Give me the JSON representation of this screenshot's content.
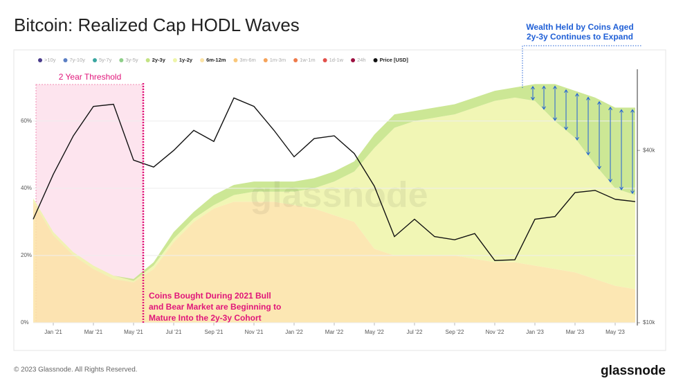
{
  "title": "Bitcoin: Realized Cap HODL Waves",
  "footer": "© 2023 Glassnode. All Rights Reserved.",
  "logo": "glassnode",
  "chart_data": {
    "type": "stacked_area",
    "watermark": "glassnode",
    "x": [
      "2020-12",
      "2021-01",
      "2021-02",
      "2021-03",
      "2021-04",
      "2021-05",
      "2021-06",
      "2021-07",
      "2021-08",
      "2021-09",
      "2021-10",
      "2021-11",
      "2021-12",
      "2022-01",
      "2022-02",
      "2022-03",
      "2022-04",
      "2022-05",
      "2022-06",
      "2022-07",
      "2022-08",
      "2022-09",
      "2022-10",
      "2022-11",
      "2022-12",
      "2023-01",
      "2023-02",
      "2023-03",
      "2023-04",
      "2023-05",
      "2023-06"
    ],
    "xlim": [
      "2020-12",
      "2023-06"
    ],
    "xticks": [
      {
        "value": "2021-01",
        "label": "Jan '21"
      },
      {
        "value": "2021-03",
        "label": "Mar '21"
      },
      {
        "value": "2021-05",
        "label": "May '21"
      },
      {
        "value": "2021-07",
        "label": "Jul '21"
      },
      {
        "value": "2021-09",
        "label": "Sep '21"
      },
      {
        "value": "2021-11",
        "label": "Nov '21"
      },
      {
        "value": "2022-01",
        "label": "Jan '22"
      },
      {
        "value": "2022-03",
        "label": "Mar '22"
      },
      {
        "value": "2022-05",
        "label": "May '22"
      },
      {
        "value": "2022-07",
        "label": "Jul '22"
      },
      {
        "value": "2022-09",
        "label": "Sep '22"
      },
      {
        "value": "2022-11",
        "label": "Nov '22"
      },
      {
        "value": "2023-01",
        "label": "Jan '23"
      },
      {
        "value": "2023-03",
        "label": "Mar '23"
      },
      {
        "value": "2023-05",
        "label": "May '23"
      }
    ],
    "ylim": [
      0,
      75
    ],
    "yticks": [
      {
        "value": 0,
        "label": "0%"
      },
      {
        "value": 20,
        "label": "20%"
      },
      {
        "value": 40,
        "label": "40%"
      },
      {
        "value": 60,
        "label": "60%"
      }
    ],
    "y2lim": [
      10000,
      76000
    ],
    "y2log": true,
    "y2ticks": [
      {
        "value": 10000,
        "label": "$10k"
      },
      {
        "value": 40000,
        "label": "$40k"
      }
    ],
    "series": [
      {
        "name": ">10y",
        "color": "#4a3c8c",
        "hidden": true
      },
      {
        "name": "7y-10y",
        "color": "#5b7fc4",
        "hidden": true
      },
      {
        "name": "5y-7y",
        "color": "#3aa6a0",
        "hidden": true
      },
      {
        "name": "3y-5y",
        "color": "#8fcf8a",
        "hidden": true
      },
      {
        "name": "2y-3y",
        "color": "#c3e383",
        "stack": 3,
        "values": [
          0,
          0,
          0,
          0,
          0,
          0.5,
          1,
          2,
          2,
          3,
          3,
          3,
          3,
          3,
          3,
          3,
          3,
          4,
          4,
          3,
          3,
          3,
          3,
          3,
          3,
          5,
          11,
          14,
          20,
          24,
          26
        ]
      },
      {
        "name": "1y-2y",
        "color": "#eef5a8",
        "stack": 2,
        "values": [
          1,
          1,
          1,
          1,
          1,
          0.5,
          1,
          1,
          1,
          1,
          2,
          3,
          3,
          4,
          6,
          10,
          15,
          30,
          38,
          40,
          41,
          42,
          45,
          48,
          49,
          49,
          44,
          40,
          34,
          29,
          28
        ]
      },
      {
        "name": "6m-12m",
        "color": "#fbe3a6",
        "stack": 1,
        "values": [
          36,
          26,
          20,
          16,
          13,
          12,
          16,
          24,
          30,
          34,
          36,
          36,
          36,
          35,
          34,
          32,
          30,
          22,
          20,
          20,
          20,
          20,
          19,
          18,
          18,
          17,
          16,
          15,
          13,
          11,
          10
        ]
      },
      {
        "name": "3m-6m",
        "color": "#f9c77a",
        "hidden": true
      },
      {
        "name": "1m-3m",
        "color": "#f5a35a",
        "hidden": true
      },
      {
        "name": "1w-1m",
        "color": "#ee7a4a",
        "hidden": true
      },
      {
        "name": "1d-1w",
        "color": "#e2504a",
        "hidden": true
      },
      {
        "name": "24h",
        "color": "#9c1040",
        "hidden": true
      },
      {
        "name": "Price [USD]",
        "color": "#111111",
        "axis": "y2",
        "values": [
          23000,
          33000,
          45000,
          57000,
          58000,
          37000,
          35000,
          40000,
          47000,
          43000,
          61000,
          57000,
          47000,
          38000,
          44000,
          45000,
          39000,
          30000,
          20000,
          23000,
          20000,
          19500,
          20500,
          16500,
          16600,
          23000,
          23500,
          28500,
          29000,
          27000,
          26500
        ]
      }
    ],
    "annotations": {
      "threshold": "2 Year Threshold",
      "coins": [
        "Coins Bought During 2021 Bull",
        "and Bear Market are Beginning to",
        "Mature Into the 2y-3y Cohort"
      ],
      "wealth": [
        "Wealth Held by Coins Aged",
        "2y-3y Continues to Expand"
      ]
    }
  }
}
